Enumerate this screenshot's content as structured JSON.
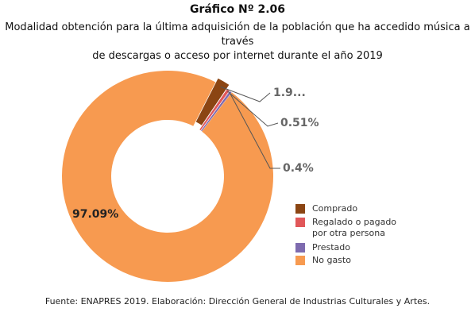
{
  "chart_number": "Gráfico Nº 2.06",
  "chart_data": {
    "type": "pie",
    "style": "donut",
    "title": "Modalidad obtención para la última adquisición de la población que ha accedido música a través de descargas o acceso por internet durante el año 2019",
    "title_lines": [
      "Modalidad obtención para la última adquisición de la población que ha accedido música a través",
      "de descargas o acceso por internet durante el año 2019"
    ],
    "legend_position": "right",
    "slices": [
      {
        "name": "Comprado",
        "legend_label_lines": [
          "Comprado"
        ],
        "value": 1.99,
        "display_label": "1.9...",
        "color": "#8B4513"
      },
      {
        "name": "Regalado o pagado por otra persona",
        "legend_label_lines": [
          "Regalado o pagado",
          "por otra persona"
        ],
        "value": 0.51,
        "display_label": "0.51%",
        "color": "#E15759"
      },
      {
        "name": "Prestado",
        "legend_label_lines": [
          "Prestado"
        ],
        "value": 0.4,
        "display_label": "0.4%",
        "color": "#7E6BAF"
      },
      {
        "name": "No gasto",
        "legend_label_lines": [
          "No gasto"
        ],
        "value": 97.09,
        "display_label": "97.09%",
        "color": "#F79A50"
      }
    ]
  },
  "source": "Fuente: ENAPRES 2019. Elaboración: Dirección General de Industrias Culturales y Artes."
}
